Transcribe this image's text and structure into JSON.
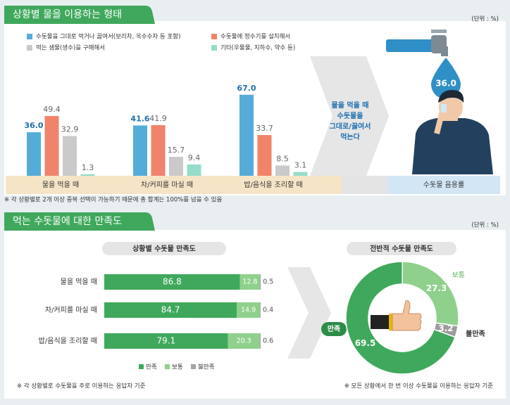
{
  "chart_data": [
    {
      "type": "bar",
      "title": "상황별 물을 이용하는 형태",
      "unit": "(단위 : %)",
      "categories": [
        "물을 먹을 때",
        "차/커피를 마실 때",
        "밥/음식을 조리할 때"
      ],
      "series": [
        {
          "name": "수돗물을 그대로 먹거나 끓여서(보리차, 옥수수차 등 포함)",
          "color": "#55acd8",
          "values": [
            36.0,
            41.6,
            67.0
          ],
          "value_labels": [
            "36.0",
            "41.6",
            "67.0"
          ]
        },
        {
          "name": "수돗물에 정수기를 설치해서",
          "color": "#f0836a",
          "values": [
            49.4,
            41.9,
            33.7
          ],
          "value_labels": [
            "49.4",
            "41.9",
            "33.7"
          ]
        },
        {
          "name": "먹는 샘물(생수)을 구매해서",
          "color": "#cacaca",
          "values": [
            32.9,
            15.7,
            8.5
          ],
          "value_labels": [
            "32.9",
            "15.7",
            "8.5"
          ]
        },
        {
          "name": "기타(우물물, 지하수, 약수 등)",
          "color": "#96dccb",
          "values": [
            1.3,
            9.4,
            3.1
          ],
          "value_labels": [
            "1.3",
            "9.4",
            "3.1"
          ]
        }
      ],
      "callout": [
        "물을 먹을 때",
        "수돗물을",
        "그대로/끓여서",
        "먹는다"
      ],
      "callout_value": 36.0,
      "callout_value_label": "36.0",
      "callout_label": "수돗물 음용률",
      "note": "※ 각 상황별로 2개 이상 중복 선택이 가능하기 때문에 총 합계는 100%를 넘을 수 있음"
    },
    {
      "type": "stacked-bar",
      "title": "먹는 수돗물에 대한 만족도",
      "unit": "(단위 : %)",
      "subtitle": "상황별 수돗물 만족도",
      "categories": [
        "물을 먹을 때",
        "차/커피를 마실 때",
        "밥/음식을 조리할 때"
      ],
      "series": [
        {
          "name": "만족",
          "color": "#3fa85c",
          "values": [
            86.8,
            84.7,
            79.1
          ]
        },
        {
          "name": "보통",
          "color": "#8fd08c",
          "values": [
            12.8,
            14.9,
            20.3
          ]
        },
        {
          "name": "불만족",
          "color": "#a5a5a5",
          "values": [
            0.5,
            0.4,
            0.6
          ]
        }
      ],
      "note": "※ 각 상황별로 수돗물을 주로 이용하는 응답자 기준"
    },
    {
      "type": "pie",
      "subtitle": "전반적 수돗물 만족도",
      "categories": [
        "만족",
        "보통",
        "불만족"
      ],
      "values": [
        69.5,
        27.3,
        3.2
      ],
      "colors": [
        "#3fa85c",
        "#8fd08c",
        "#9c9c9c"
      ],
      "note": "※ 모든 상황에서 한 번 이상 수돗물을 이용하는 응답자 기준"
    }
  ]
}
